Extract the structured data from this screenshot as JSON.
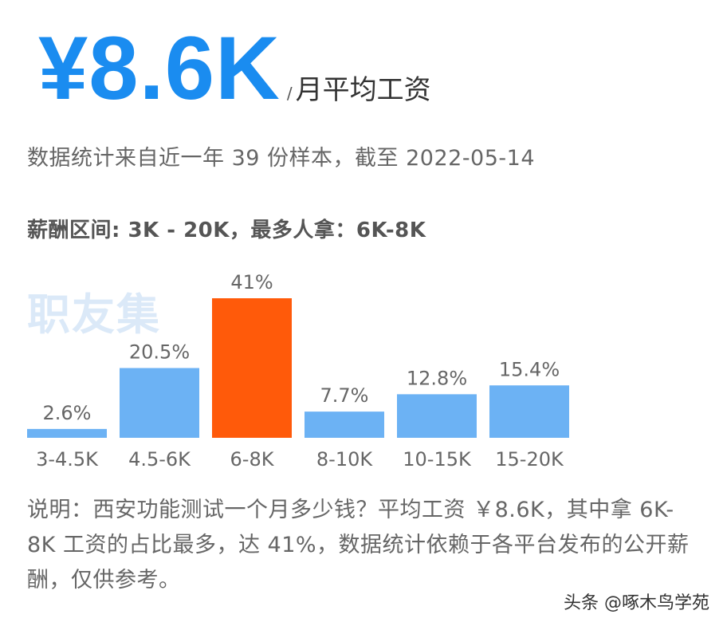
{
  "header": {
    "salary": "¥8.6K",
    "unit_slash": "/",
    "unit": "月平均工资"
  },
  "subtitle": "数据统计来自近一年 39 份样本，截至 2022-05-14",
  "range_line": "薪酬区间: 3K - 20K，最多人拿：6K-8K",
  "brand_watermark": "职友集",
  "chart_data": {
    "type": "bar",
    "categories": [
      "3-4.5K",
      "4.5-6K",
      "6-8K",
      "8-10K",
      "10-15K",
      "15-20K"
    ],
    "values": [
      2.6,
      20.5,
      41,
      7.7,
      12.8,
      15.4
    ],
    "value_labels": [
      "2.6%",
      "20.5%",
      "41%",
      "7.7%",
      "12.8%",
      "15.4%"
    ],
    "highlight_index": 2,
    "colors": {
      "default": "#6cb2f4",
      "highlight": "#ff5a0a"
    },
    "ylim": [
      0,
      41
    ]
  },
  "note": "说明：西安功能测试一个月多少钱？平均工资 ￥8.6K，其中拿 6K-8K 工资的占比最多，达 41%，数据统计依赖于各平台发布的公开薪酬，仅供参考。",
  "source_watermark": "头条 @啄木鸟学苑"
}
